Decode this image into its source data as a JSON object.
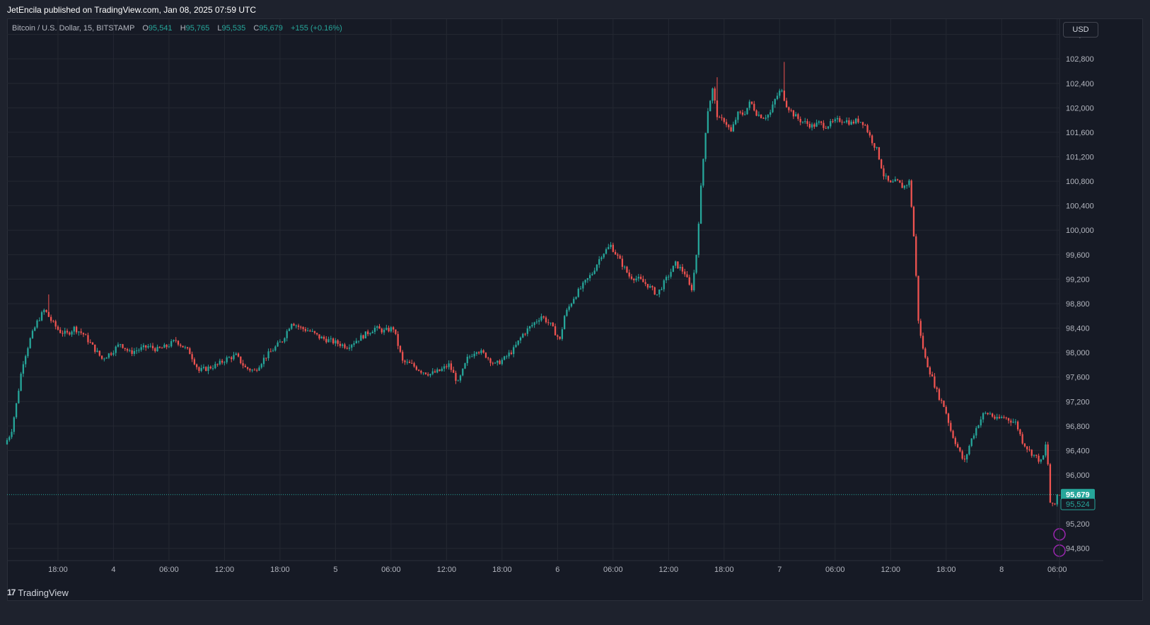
{
  "header": {
    "publisher_line": "JetEncila published on TradingView.com, Jan 08, 2025 07:59 UTC"
  },
  "legend": {
    "symbol": "Bitcoin / U.S. Dollar, 15, BITSTAMP",
    "o_label": "O",
    "o_value": "95,541",
    "h_label": "H",
    "h_value": "95,765",
    "l_label": "L",
    "l_value": "95,535",
    "c_label": "C",
    "c_value": "95,679",
    "change": "+155 (+0.16%)"
  },
  "currency_button": "USD",
  "footer": {
    "brand": "TradingView",
    "brand_mark": "17"
  },
  "colors": {
    "up": "#26a69a",
    "down": "#ef5350",
    "background": "#161a25",
    "grid": "#242832",
    "axis_text": "#b2b5be",
    "price_label_bg": "#26a69a"
  },
  "icons": {
    "alert_markers": [
      "circle-marker-icon",
      "circle-marker-icon"
    ]
  },
  "chart_data": {
    "type": "candlestick",
    "symbol": "Bitcoin / U.S. Dollar",
    "interval": "15",
    "exchange": "BITSTAMP",
    "currency": "USD",
    "ylim": [
      94600,
      103450
    ],
    "y_ticks": [
      103200,
      102800,
      102400,
      102000,
      101600,
      101200,
      100800,
      100400,
      100000,
      99600,
      99200,
      98800,
      98400,
      98000,
      97600,
      97200,
      96800,
      96400,
      96000,
      95200,
      94800
    ],
    "y_tick_labels": [
      "103,200",
      "102,800",
      "102,400",
      "102,000",
      "101,600",
      "101,200",
      "100,800",
      "100,400",
      "100,000",
      "99,600",
      "99,200",
      "98,800",
      "98,400",
      "98,000",
      "97,600",
      "97,200",
      "96,800",
      "96,400",
      "96,000",
      "95,200",
      "94,800"
    ],
    "x_ticks": [
      "18:00",
      "4",
      "06:00",
      "12:00",
      "18:00",
      "5",
      "06:00",
      "12:00",
      "18:00",
      "6",
      "06:00",
      "12:00",
      "18:00",
      "7",
      "06:00",
      "12:00",
      "18:00",
      "8",
      "06:00"
    ],
    "x_tick_hours": [
      18,
      24,
      30,
      36,
      42,
      48,
      54,
      60,
      66,
      72,
      78,
      84,
      90,
      96,
      102,
      108,
      114,
      120,
      126
    ],
    "x_range_hours": [
      12.5,
      126.25
    ],
    "bar_minutes": 15,
    "price_path": [
      [
        12.5,
        96500
      ],
      [
        13.2,
        96700
      ],
      [
        13.8,
        97200
      ],
      [
        14.4,
        97800
      ],
      [
        15.2,
        98200
      ],
      [
        16.0,
        98500
      ],
      [
        16.8,
        98700
      ],
      [
        17.6,
        98500
      ],
      [
        18.4,
        98350
      ],
      [
        19.2,
        98300
      ],
      [
        20.0,
        98400
      ],
      [
        21.0,
        98300
      ],
      [
        22.0,
        98100
      ],
      [
        23.0,
        97900
      ],
      [
        24.0,
        98000
      ],
      [
        25.0,
        98150
      ],
      [
        26.0,
        98000
      ],
      [
        27.0,
        98050
      ],
      [
        28.0,
        98100
      ],
      [
        29.0,
        98050
      ],
      [
        30.0,
        98100
      ],
      [
        31.0,
        98200
      ],
      [
        32.5,
        98000
      ],
      [
        33.5,
        97700
      ],
      [
        34.5,
        97750
      ],
      [
        35.5,
        97800
      ],
      [
        36.5,
        97900
      ],
      [
        37.5,
        97950
      ],
      [
        38.5,
        97750
      ],
      [
        39.5,
        97700
      ],
      [
        40.5,
        97900
      ],
      [
        41.5,
        98050
      ],
      [
        42.5,
        98200
      ],
      [
        43.5,
        98500
      ],
      [
        44.5,
        98400
      ],
      [
        45.5,
        98350
      ],
      [
        46.5,
        98250
      ],
      [
        47.5,
        98200
      ],
      [
        48.5,
        98150
      ],
      [
        49.5,
        98100
      ],
      [
        50.5,
        98200
      ],
      [
        51.5,
        98300
      ],
      [
        52.5,
        98400
      ],
      [
        53.5,
        98350
      ],
      [
        54.5,
        98400
      ],
      [
        55.5,
        97850
      ],
      [
        56.5,
        97800
      ],
      [
        57.5,
        97700
      ],
      [
        58.5,
        97650
      ],
      [
        59.5,
        97700
      ],
      [
        60.5,
        97800
      ],
      [
        61.5,
        97500
      ],
      [
        62.5,
        97900
      ],
      [
        63.5,
        98050
      ],
      [
        64.5,
        97950
      ],
      [
        65.5,
        97800
      ],
      [
        66.5,
        97900
      ],
      [
        67.5,
        98050
      ],
      [
        68.5,
        98300
      ],
      [
        69.5,
        98450
      ],
      [
        70.5,
        98600
      ],
      [
        71.5,
        98450
      ],
      [
        72.5,
        98200
      ],
      [
        73.0,
        98600
      ],
      [
        74.0,
        98900
      ],
      [
        75.0,
        99100
      ],
      [
        76.0,
        99300
      ],
      [
        77.0,
        99600
      ],
      [
        78.0,
        99750
      ],
      [
        79.0,
        99500
      ],
      [
        80.0,
        99250
      ],
      [
        81.0,
        99200
      ],
      [
        82.0,
        99100
      ],
      [
        83.0,
        98950
      ],
      [
        84.0,
        99200
      ],
      [
        85.0,
        99450
      ],
      [
        86.0,
        99300
      ],
      [
        86.7,
        99000
      ],
      [
        87.2,
        99500
      ],
      [
        87.8,
        100800
      ],
      [
        88.4,
        101900
      ],
      [
        89.0,
        102300
      ],
      [
        89.6,
        101800
      ],
      [
        90.3,
        101800
      ],
      [
        91.0,
        101600
      ],
      [
        91.7,
        101900
      ],
      [
        92.4,
        101900
      ],
      [
        93.1,
        102100
      ],
      [
        93.8,
        101900
      ],
      [
        94.5,
        101850
      ],
      [
        95.2,
        101900
      ],
      [
        95.8,
        102150
      ],
      [
        96.4,
        102300
      ],
      [
        97.0,
        102050
      ],
      [
        97.7,
        101900
      ],
      [
        98.4,
        101800
      ],
      [
        99.1,
        101750
      ],
      [
        99.8,
        101700
      ],
      [
        100.5,
        101750
      ],
      [
        101.2,
        101700
      ],
      [
        101.9,
        101750
      ],
      [
        102.6,
        101800
      ],
      [
        103.3,
        101800
      ],
      [
        104.0,
        101750
      ],
      [
        104.7,
        101800
      ],
      [
        105.4,
        101750
      ],
      [
        106.1,
        101500
      ],
      [
        106.8,
        101300
      ],
      [
        107.5,
        100900
      ],
      [
        108.2,
        100750
      ],
      [
        108.9,
        100800
      ],
      [
        109.6,
        100700
      ],
      [
        110.3,
        100800
      ],
      [
        110.8,
        99800
      ],
      [
        111.3,
        98400
      ],
      [
        112.0,
        97900
      ],
      [
        112.7,
        97600
      ],
      [
        113.4,
        97300
      ],
      [
        114.1,
        97100
      ],
      [
        114.8,
        96700
      ],
      [
        115.5,
        96450
      ],
      [
        116.2,
        96200
      ],
      [
        116.9,
        96550
      ],
      [
        117.6,
        96800
      ],
      [
        118.3,
        97000
      ],
      [
        119.0,
        97000
      ],
      [
        119.7,
        96900
      ],
      [
        120.4,
        96950
      ],
      [
        121.1,
        96900
      ],
      [
        121.8,
        96850
      ],
      [
        122.5,
        96550
      ],
      [
        123.2,
        96400
      ],
      [
        123.9,
        96300
      ],
      [
        124.6,
        96200
      ],
      [
        125.1,
        96550
      ],
      [
        125.5,
        95550
      ],
      [
        125.9,
        95450
      ],
      [
        126.25,
        95679
      ]
    ],
    "candle_high_outliers": [
      {
        "time": 96.4,
        "high": 102750
      },
      {
        "time": 89.2,
        "high": 102500
      },
      {
        "time": 17.0,
        "high": 98950
      }
    ],
    "last_price": 95679,
    "last_price_label": "95,679",
    "second_price": 95524,
    "second_price_label": "95,524",
    "last_bar": {
      "open": 95541,
      "high": 95765,
      "low": 95535,
      "close": 95679,
      "change": 155,
      "change_pct": 0.16
    },
    "grid": true,
    "legend_position": "top-left",
    "price_scale_position": "right"
  }
}
